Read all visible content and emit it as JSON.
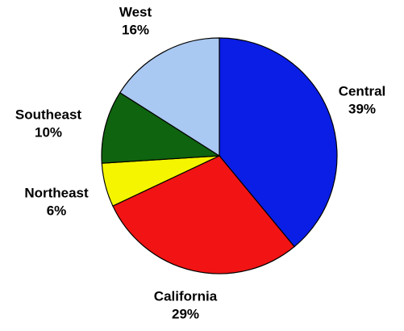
{
  "chart_data": {
    "type": "pie",
    "slices": [
      {
        "name": "Central",
        "value": 39,
        "label": "39%",
        "color": "#0a1ee6"
      },
      {
        "name": "California",
        "value": 29,
        "label": "29%",
        "color": "#f21414"
      },
      {
        "name": "Northeast",
        "value": 6,
        "label": "6%",
        "color": "#f5f500"
      },
      {
        "name": "Southeast",
        "value": 10,
        "label": "10%",
        "color": "#0f640f"
      },
      {
        "name": "West",
        "value": 16,
        "label": "16%",
        "color": "#a9c8f2"
      }
    ],
    "start": "top",
    "direction": "clockwise",
    "legend": "none",
    "labels": "outside"
  }
}
